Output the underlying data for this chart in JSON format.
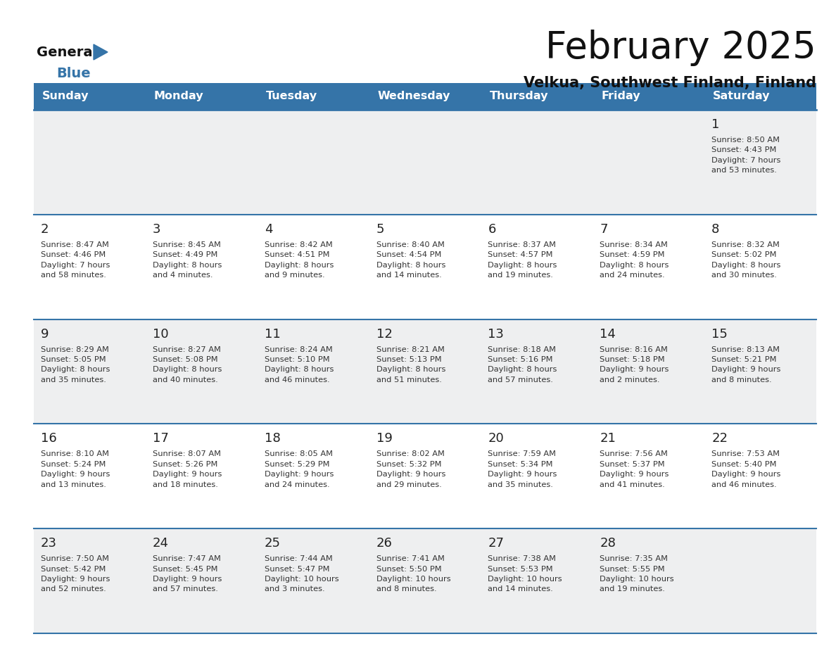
{
  "title": "February 2025",
  "subtitle": "Velkua, Southwest Finland, Finland",
  "header_color": "#3574a8",
  "header_text_color": "#ffffff",
  "bg_color": "#ffffff",
  "cell_bg_light": "#eeeff0",
  "cell_bg_white": "#ffffff",
  "border_color": "#3574a8",
  "day_text_color": "#333333",
  "day_num_color": "#222222",
  "day_headers": [
    "Sunday",
    "Monday",
    "Tuesday",
    "Wednesday",
    "Thursday",
    "Friday",
    "Saturday"
  ],
  "days": [
    {
      "day": 1,
      "col": 6,
      "row": 0,
      "sunrise": "8:50 AM",
      "sunset": "4:43 PM",
      "daylight": "7 hours\nand 53 minutes."
    },
    {
      "day": 2,
      "col": 0,
      "row": 1,
      "sunrise": "8:47 AM",
      "sunset": "4:46 PM",
      "daylight": "7 hours\nand 58 minutes."
    },
    {
      "day": 3,
      "col": 1,
      "row": 1,
      "sunrise": "8:45 AM",
      "sunset": "4:49 PM",
      "daylight": "8 hours\nand 4 minutes."
    },
    {
      "day": 4,
      "col": 2,
      "row": 1,
      "sunrise": "8:42 AM",
      "sunset": "4:51 PM",
      "daylight": "8 hours\nand 9 minutes."
    },
    {
      "day": 5,
      "col": 3,
      "row": 1,
      "sunrise": "8:40 AM",
      "sunset": "4:54 PM",
      "daylight": "8 hours\nand 14 minutes."
    },
    {
      "day": 6,
      "col": 4,
      "row": 1,
      "sunrise": "8:37 AM",
      "sunset": "4:57 PM",
      "daylight": "8 hours\nand 19 minutes."
    },
    {
      "day": 7,
      "col": 5,
      "row": 1,
      "sunrise": "8:34 AM",
      "sunset": "4:59 PM",
      "daylight": "8 hours\nand 24 minutes."
    },
    {
      "day": 8,
      "col": 6,
      "row": 1,
      "sunrise": "8:32 AM",
      "sunset": "5:02 PM",
      "daylight": "8 hours\nand 30 minutes."
    },
    {
      "day": 9,
      "col": 0,
      "row": 2,
      "sunrise": "8:29 AM",
      "sunset": "5:05 PM",
      "daylight": "8 hours\nand 35 minutes."
    },
    {
      "day": 10,
      "col": 1,
      "row": 2,
      "sunrise": "8:27 AM",
      "sunset": "5:08 PM",
      "daylight": "8 hours\nand 40 minutes."
    },
    {
      "day": 11,
      "col": 2,
      "row": 2,
      "sunrise": "8:24 AM",
      "sunset": "5:10 PM",
      "daylight": "8 hours\nand 46 minutes."
    },
    {
      "day": 12,
      "col": 3,
      "row": 2,
      "sunrise": "8:21 AM",
      "sunset": "5:13 PM",
      "daylight": "8 hours\nand 51 minutes."
    },
    {
      "day": 13,
      "col": 4,
      "row": 2,
      "sunrise": "8:18 AM",
      "sunset": "5:16 PM",
      "daylight": "8 hours\nand 57 minutes."
    },
    {
      "day": 14,
      "col": 5,
      "row": 2,
      "sunrise": "8:16 AM",
      "sunset": "5:18 PM",
      "daylight": "9 hours\nand 2 minutes."
    },
    {
      "day": 15,
      "col": 6,
      "row": 2,
      "sunrise": "8:13 AM",
      "sunset": "5:21 PM",
      "daylight": "9 hours\nand 8 minutes."
    },
    {
      "day": 16,
      "col": 0,
      "row": 3,
      "sunrise": "8:10 AM",
      "sunset": "5:24 PM",
      "daylight": "9 hours\nand 13 minutes."
    },
    {
      "day": 17,
      "col": 1,
      "row": 3,
      "sunrise": "8:07 AM",
      "sunset": "5:26 PM",
      "daylight": "9 hours\nand 18 minutes."
    },
    {
      "day": 18,
      "col": 2,
      "row": 3,
      "sunrise": "8:05 AM",
      "sunset": "5:29 PM",
      "daylight": "9 hours\nand 24 minutes."
    },
    {
      "day": 19,
      "col": 3,
      "row": 3,
      "sunrise": "8:02 AM",
      "sunset": "5:32 PM",
      "daylight": "9 hours\nand 29 minutes."
    },
    {
      "day": 20,
      "col": 4,
      "row": 3,
      "sunrise": "7:59 AM",
      "sunset": "5:34 PM",
      "daylight": "9 hours\nand 35 minutes."
    },
    {
      "day": 21,
      "col": 5,
      "row": 3,
      "sunrise": "7:56 AM",
      "sunset": "5:37 PM",
      "daylight": "9 hours\nand 41 minutes."
    },
    {
      "day": 22,
      "col": 6,
      "row": 3,
      "sunrise": "7:53 AM",
      "sunset": "5:40 PM",
      "daylight": "9 hours\nand 46 minutes."
    },
    {
      "day": 23,
      "col": 0,
      "row": 4,
      "sunrise": "7:50 AM",
      "sunset": "5:42 PM",
      "daylight": "9 hours\nand 52 minutes."
    },
    {
      "day": 24,
      "col": 1,
      "row": 4,
      "sunrise": "7:47 AM",
      "sunset": "5:45 PM",
      "daylight": "9 hours\nand 57 minutes."
    },
    {
      "day": 25,
      "col": 2,
      "row": 4,
      "sunrise": "7:44 AM",
      "sunset": "5:47 PM",
      "daylight": "10 hours\nand 3 minutes."
    },
    {
      "day": 26,
      "col": 3,
      "row": 4,
      "sunrise": "7:41 AM",
      "sunset": "5:50 PM",
      "daylight": "10 hours\nand 8 minutes."
    },
    {
      "day": 27,
      "col": 4,
      "row": 4,
      "sunrise": "7:38 AM",
      "sunset": "5:53 PM",
      "daylight": "10 hours\nand 14 minutes."
    },
    {
      "day": 28,
      "col": 5,
      "row": 4,
      "sunrise": "7:35 AM",
      "sunset": "5:55 PM",
      "daylight": "10 hours\nand 19 minutes."
    }
  ],
  "num_rows": 5,
  "num_cols": 7
}
